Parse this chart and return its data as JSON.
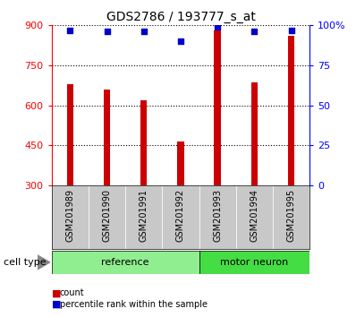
{
  "title": "GDS2786 / 193777_s_at",
  "categories": [
    "GSM201989",
    "GSM201990",
    "GSM201991",
    "GSM201992",
    "GSM201993",
    "GSM201994",
    "GSM201995"
  ],
  "counts": [
    680,
    660,
    620,
    465,
    882,
    685,
    860
  ],
  "percentiles": [
    97,
    96,
    96,
    90,
    99,
    96,
    97
  ],
  "groups": [
    {
      "label": "reference",
      "start": 0,
      "end": 3
    },
    {
      "label": "motor neuron",
      "start": 4,
      "end": 6
    }
  ],
  "ref_color": "#90EE90",
  "mot_color": "#44DD44",
  "bar_color": "#CC0000",
  "dot_color": "#0000CC",
  "ylim_left": [
    300,
    900
  ],
  "ylim_right": [
    0,
    100
  ],
  "yticks_left": [
    300,
    450,
    600,
    750,
    900
  ],
  "yticks_right": [
    0,
    25,
    50,
    75,
    100
  ],
  "yticklabels_right": [
    "0",
    "25",
    "50",
    "75",
    "100%"
  ],
  "xlabel_area_color": "#C8C8C8",
  "legend_items": [
    {
      "label": "count",
      "color": "#CC0000"
    },
    {
      "label": "percentile rank within the sample",
      "color": "#0000CC"
    }
  ],
  "cell_type_label": "cell type",
  "bar_width": 0.18
}
